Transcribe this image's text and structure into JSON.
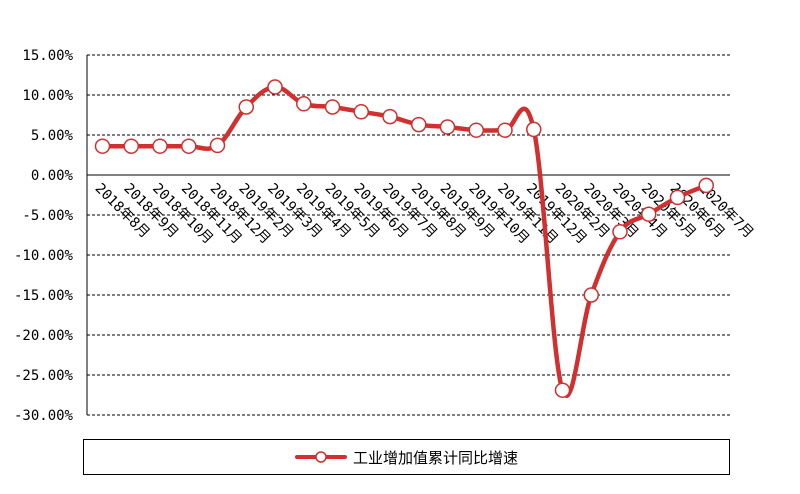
{
  "chart_data": {
    "type": "line",
    "title": "",
    "xlabel": "",
    "ylabel": "",
    "ylim": [
      -30,
      15
    ],
    "y_tick_step": 5,
    "y_tick_format": "percent_2dp",
    "grid": "horizontal dashed",
    "legend_position": "bottom",
    "line_color": "#d03030",
    "marker": "hollow-circle",
    "categories": [
      "2018年8月",
      "2018年9月",
      "2018年10月",
      "2018年11月",
      "2018年12月",
      "2019年2月",
      "2019年3月",
      "2019年4月",
      "2019年5月",
      "2019年6月",
      "2019年7月",
      "2019年8月",
      "2019年9月",
      "2019年10月",
      "2019年11月",
      "2019年12月",
      "2020年2月",
      "2020年3月",
      "2020年4月",
      "2020年5月",
      "2020年6月",
      "2020年7月"
    ],
    "x_tick_labels": [
      "2018年8月",
      "2018年9月",
      "2018年10月",
      "2018年11月",
      "2018年12月",
      "2019年2月",
      "2019年3月",
      "2019年4月",
      "2019年5月",
      "2019年6月",
      "2019年7月",
      "2019年8月",
      "2019年9月",
      "2019年10月",
      "2019年11月",
      "2019年12月",
      "2020年2月",
      "2020年3月",
      "2020年4月",
      "2020年5月",
      "2020年6月",
      "2020年7月"
    ],
    "series": [
      {
        "name": "工业增加值累计同比增速",
        "values": [
          3.6,
          3.6,
          3.6,
          3.6,
          3.7,
          8.5,
          11.0,
          8.9,
          8.5,
          7.9,
          7.3,
          6.3,
          6.0,
          5.6,
          5.6,
          5.7,
          -26.9,
          -15.0,
          -7.1,
          -4.9,
          -2.8,
          -1.3
        ]
      }
    ]
  }
}
